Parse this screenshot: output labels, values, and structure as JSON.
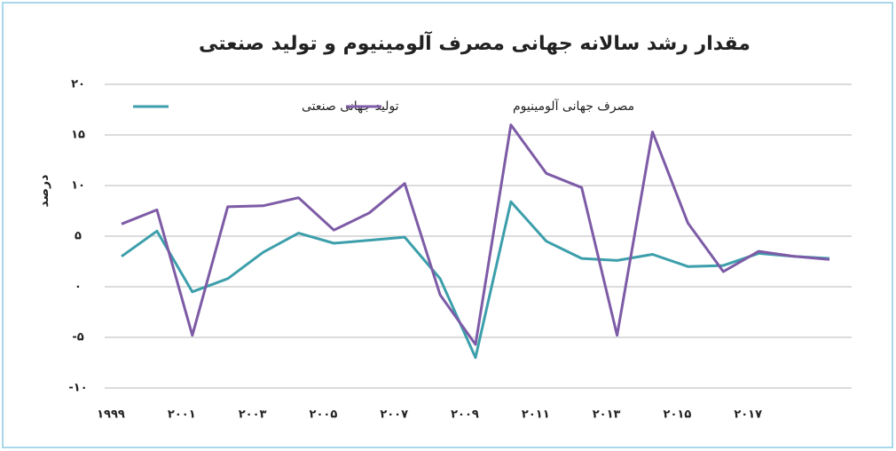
{
  "chart_data": {
    "type": "line",
    "title": "مقدار رشد سالانه جهانی مصرف آلومینیوم و تولید صنعتی",
    "y_label": "درصد",
    "categories": [
      "۱۹۹۹",
      null,
      "۲۰۰۱",
      null,
      "۲۰۰۳",
      null,
      "۲۰۰۵",
      null,
      "۲۰۰۷",
      null,
      "۲۰۰۹",
      null,
      "۲۰۱۱",
      null,
      "۲۰۱۳",
      null,
      "۲۰۱۵",
      null,
      "۲۰۱۷",
      null,
      null
    ],
    "series": [
      {
        "name": "تولید جهانی صنعتی",
        "color": "#3c9fab",
        "values": [
          3.0,
          5.5,
          -0.5,
          0.8,
          3.4,
          5.3,
          4.3,
          4.6,
          4.9,
          0.8,
          -7.0,
          8.4,
          4.5,
          2.8,
          2.6,
          3.2,
          2.0,
          2.1,
          3.3,
          3.0,
          2.8
        ]
      },
      {
        "name": "مصرف جهانی آلومینیوم",
        "color": "#7d5ba6",
        "values": [
          6.2,
          7.6,
          -4.8,
          7.9,
          8.0,
          8.8,
          5.6,
          7.3,
          10.2,
          -0.8,
          -5.7,
          16.0,
          11.2,
          9.8,
          -4.8,
          15.3,
          6.3,
          1.5,
          3.5,
          3.0,
          2.7
        ]
      }
    ],
    "ylim": [
      -10,
      20
    ],
    "yticks": [
      {
        "value": -10,
        "label": "-۱۰"
      },
      {
        "value": -5,
        "label": "-۵"
      },
      {
        "value": 0,
        "label": "۰"
      },
      {
        "value": 5,
        "label": "۵"
      },
      {
        "value": 10,
        "label": "۱۰"
      },
      {
        "value": 15,
        "label": "۱۵"
      },
      {
        "value": 20,
        "label": "۲۰"
      }
    ],
    "grid": true
  }
}
